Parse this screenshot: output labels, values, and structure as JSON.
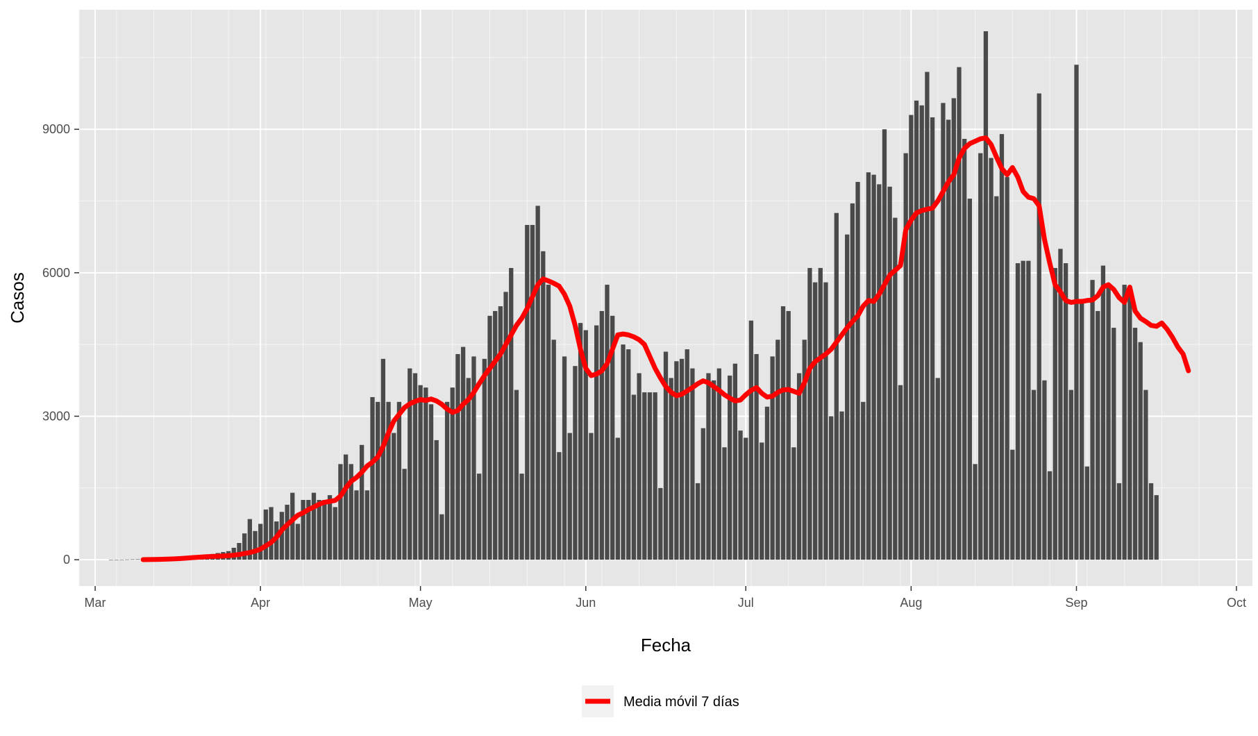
{
  "chart_data": {
    "type": "bar",
    "xlabel": "Fecha",
    "ylabel": "Casos",
    "x_start": "2020-03-04",
    "x_ticks": [
      {
        "date": "2020-03-01",
        "label": "Mar"
      },
      {
        "date": "2020-04-01",
        "label": "Apr"
      },
      {
        "date": "2020-05-01",
        "label": "May"
      },
      {
        "date": "2020-06-01",
        "label": "Jun"
      },
      {
        "date": "2020-07-01",
        "label": "Jul"
      },
      {
        "date": "2020-08-01",
        "label": "Aug"
      },
      {
        "date": "2020-09-01",
        "label": "Sep"
      },
      {
        "date": "2020-10-01",
        "label": "Oct"
      }
    ],
    "xlim": [
      "2020-02-27",
      "2020-10-04"
    ],
    "y_ticks": [
      0,
      3000,
      6000,
      9000
    ],
    "ylim": [
      -550,
      11500
    ],
    "grid": true,
    "legend_position": "bottom",
    "colors": {
      "bars": "#4a4a4a",
      "line": "#ff0000",
      "panel": "#e6e6e6",
      "grid": "#ffffff"
    },
    "series": [
      {
        "type": "bar",
        "values": [
          2,
          2,
          3,
          5,
          8,
          10,
          15,
          20,
          28,
          35,
          45,
          50,
          55,
          60,
          65,
          70,
          80,
          90,
          100,
          120,
          140,
          160,
          180,
          250,
          350,
          550,
          850,
          600,
          750,
          1050,
          1100,
          800,
          1000,
          1150,
          1400,
          750,
          1250,
          1250,
          1400,
          1250,
          1250,
          1350,
          1100,
          2000,
          2200,
          2000,
          1450,
          2400,
          1450,
          3400,
          3300,
          4200,
          3300,
          2650,
          3300,
          1900,
          4000,
          3900,
          3650,
          3600,
          3250,
          2500,
          950,
          3300,
          3600,
          4300,
          4450,
          3800,
          4250,
          1800,
          4200,
          5100,
          5200,
          5300,
          5600,
          6100,
          3550,
          1800,
          7000,
          7000,
          7400,
          6450,
          5750,
          4600,
          2250,
          4250,
          2650,
          4050,
          4950,
          4800,
          2650,
          4900,
          5200,
          5750,
          5100,
          2550,
          4500,
          4400,
          3450,
          3900,
          3500,
          3500,
          3500,
          1500,
          4350,
          3800,
          4150,
          4200,
          4400,
          4000,
          1600,
          2750,
          3900,
          3750,
          4000,
          2350,
          3850,
          4100,
          2700,
          2550,
          5000,
          4300,
          2450,
          3200,
          4250,
          4600,
          5300,
          5200,
          2350,
          3900,
          4600,
          6100,
          5800,
          6100,
          5800,
          3000,
          7250,
          3100,
          6800,
          7450,
          7900,
          3300,
          8100,
          8050,
          7850,
          9000,
          7800,
          7150,
          3650,
          8500,
          9300,
          9600,
          9500,
          10200,
          9250,
          3800,
          9550,
          9200,
          9650,
          10300,
          8800,
          7550,
          2000,
          8500,
          11050,
          8400,
          7600,
          8900,
          8000,
          2300,
          6200,
          6250,
          6250,
          3550,
          9750,
          3750,
          1850,
          6100,
          6500,
          6200,
          3550,
          10350,
          5450,
          1950,
          5850,
          5200,
          6150,
          5700,
          4850,
          1600,
          5750,
          5550,
          4850,
          4550,
          3550,
          1600,
          1350
        ]
      },
      {
        "type": "line",
        "name": "Media móvil 7 días",
        "start": "2020-03-10",
        "values": [
          2,
          3,
          5,
          7,
          10,
          14,
          19,
          25,
          33,
          41,
          49,
          56,
          63,
          68,
          73,
          78,
          85,
          95,
          110,
          130,
          150,
          180,
          220,
          290,
          360,
          470,
          620,
          730,
          830,
          930,
          980,
          1050,
          1100,
          1160,
          1200,
          1220,
          1240,
          1330,
          1500,
          1640,
          1720,
          1830,
          1960,
          2040,
          2150,
          2370,
          2650,
          2900,
          3040,
          3180,
          3260,
          3310,
          3350,
          3330,
          3360,
          3320,
          3250,
          3150,
          3080,
          3120,
          3250,
          3350,
          3500,
          3680,
          3850,
          4000,
          4150,
          4300,
          4500,
          4700,
          4900,
          5050,
          5250,
          5500,
          5750,
          5870,
          5830,
          5780,
          5720,
          5550,
          5300,
          4900,
          4400,
          4000,
          3850,
          3880,
          3950,
          4100,
          4400,
          4700,
          4720,
          4700,
          4660,
          4600,
          4500,
          4250,
          4000,
          3800,
          3620,
          3500,
          3430,
          3460,
          3530,
          3600,
          3680,
          3740,
          3700,
          3620,
          3540,
          3450,
          3380,
          3320,
          3340,
          3450,
          3540,
          3600,
          3480,
          3400,
          3420,
          3500,
          3550,
          3560,
          3520,
          3480,
          3700,
          4000,
          4140,
          4220,
          4300,
          4400,
          4550,
          4700,
          4850,
          4980,
          5100,
          5300,
          5420,
          5400,
          5550,
          5750,
          5950,
          6050,
          6150,
          6900,
          7100,
          7250,
          7300,
          7330,
          7350,
          7500,
          7700,
          7900,
          8050,
          8400,
          8600,
          8700,
          8750,
          8800,
          8820,
          8680,
          8420,
          8180,
          8050,
          8200,
          8000,
          7700,
          7580,
          7550,
          7400,
          6700,
          6200,
          5750,
          5600,
          5420,
          5380,
          5400,
          5400,
          5420,
          5430,
          5520,
          5700,
          5750,
          5650,
          5480,
          5380,
          5700,
          5200,
          5050,
          4980,
          4900,
          4880,
          4950,
          4820,
          4650,
          4450,
          4300,
          3950
        ]
      }
    ]
  }
}
